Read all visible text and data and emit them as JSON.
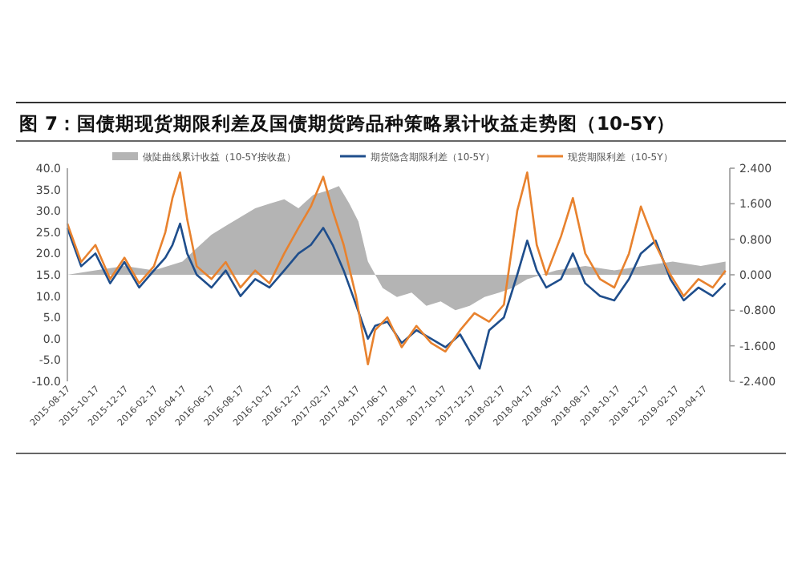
{
  "chart_data": {
    "type": "line",
    "title": "图 7：国债期现货期限利差及国债期货跨品种策略累计收益走势图（10-5Y）",
    "legend": "top",
    "marker": "none",
    "line_style": "solid",
    "grid": false,
    "xlim": [
      "2015-08-17",
      "2019-06-10"
    ],
    "xticks": [
      "2015-08-17",
      "2015-10-17",
      "2015-12-17",
      "2016-02-17",
      "2016-04-17",
      "2016-06-17",
      "2016-08-17",
      "2016-10-17",
      "2016-12-17",
      "2017-02-17",
      "2017-04-17",
      "2017-06-17",
      "2017-08-17",
      "2017-10-17",
      "2017-12-17",
      "2018-02-17",
      "2018-04-17",
      "2018-06-17",
      "2018-08-17",
      "2018-10-17",
      "2018-12-17",
      "2019-02-17",
      "2019-04-17"
    ],
    "ylim": [
      -10,
      40
    ],
    "yticks": [
      {
        "value": 40,
        "label": "40.0"
      },
      {
        "value": 35,
        "label": "35.0"
      },
      {
        "value": 30,
        "label": "30.0"
      },
      {
        "value": 25,
        "label": "25.0"
      },
      {
        "value": 20,
        "label": "20.0"
      },
      {
        "value": 15,
        "label": "15.0"
      },
      {
        "value": 10,
        "label": "10.0"
      },
      {
        "value": 5,
        "label": "5.0"
      },
      {
        "value": 0,
        "label": "0.0"
      },
      {
        "value": -5,
        "label": "-5.0"
      },
      {
        "value": -10,
        "label": "-10.0"
      }
    ],
    "y2lim": [
      -2.4,
      2.4
    ],
    "y2ticks": [
      {
        "value": 2.4,
        "label": "2.400"
      },
      {
        "value": 1.6,
        "label": "1.600"
      },
      {
        "value": 0.8,
        "label": "0.800"
      },
      {
        "value": 0,
        "label": "0.000"
      },
      {
        "value": -0.8,
        "label": "-0.800"
      },
      {
        "value": -1.6,
        "label": "-1.600"
      },
      {
        "value": -2.4,
        "label": "-2.400"
      }
    ],
    "series": [
      {
        "name": "做陡曲线累计收益（10-5Y按收盘）",
        "type": "area",
        "axis": "y2",
        "color": "#b4b4b4",
        "x": [
          "2015-08-17",
          "2015-10-15",
          "2015-12-15",
          "2016-02-15",
          "2016-04-15",
          "2016-05-15",
          "2016-06-15",
          "2016-07-15",
          "2016-08-15",
          "2016-09-15",
          "2016-10-15",
          "2016-11-15",
          "2016-12-15",
          "2017-01-15",
          "2017-02-15",
          "2017-03-10",
          "2017-04-01",
          "2017-04-20",
          "2017-05-10",
          "2017-06-10",
          "2017-07-10",
          "2017-08-10",
          "2017-09-10",
          "2017-10-10",
          "2017-11-10",
          "2017-12-10",
          "2018-01-10",
          "2018-02-10",
          "2018-03-10",
          "2018-04-10",
          "2018-06-10",
          "2018-08-10",
          "2018-10-10",
          "2018-12-10",
          "2019-02-10",
          "2019-04-10",
          "2019-06-01"
        ],
        "values": [
          0,
          0.1,
          0.2,
          0.1,
          0.3,
          0.6,
          0.9,
          1.1,
          1.3,
          1.5,
          1.6,
          1.7,
          1.5,
          1.8,
          1.9,
          2.0,
          1.6,
          1.2,
          0.3,
          -0.3,
          -0.5,
          -0.4,
          -0.7,
          -0.6,
          -0.8,
          -0.7,
          -0.5,
          -0.4,
          -0.3,
          -0.1,
          0.1,
          0.2,
          0.1,
          0.2,
          0.3,
          0.2,
          0.3
        ]
      },
      {
        "name": "期货隐含期限利差（10-5Y）",
        "type": "line",
        "color": "#1f4e8c",
        "x": [
          "2015-08-17",
          "2015-09-15",
          "2015-10-15",
          "2015-11-15",
          "2015-12-15",
          "2016-01-15",
          "2016-02-15",
          "2016-03-10",
          "2016-03-25",
          "2016-04-10",
          "2016-04-25",
          "2016-05-15",
          "2016-06-15",
          "2016-07-15",
          "2016-08-15",
          "2016-09-15",
          "2016-10-15",
          "2016-11-15",
          "2016-12-15",
          "2017-01-10",
          "2017-02-05",
          "2017-02-25",
          "2017-03-20",
          "2017-04-15",
          "2017-05-10",
          "2017-05-25",
          "2017-06-20",
          "2017-07-20",
          "2017-08-20",
          "2017-09-20",
          "2017-10-20",
          "2017-11-20",
          "2017-12-31",
          "2018-01-20",
          "2018-02-20",
          "2018-03-20",
          "2018-04-10",
          "2018-04-30",
          "2018-05-20",
          "2018-06-20",
          "2018-07-15",
          "2018-08-10",
          "2018-09-10",
          "2018-10-10",
          "2018-11-10",
          "2018-12-05",
          "2019-01-05",
          "2019-02-05",
          "2019-03-05",
          "2019-04-05",
          "2019-05-05",
          "2019-06-01"
        ],
        "values": [
          26,
          17,
          20,
          13,
          18,
          12,
          16,
          19,
          22,
          27,
          20,
          15,
          12,
          16,
          10,
          14,
          12,
          16,
          20,
          22,
          26,
          22,
          16,
          8,
          0,
          3,
          4,
          -1,
          2,
          0,
          -2,
          1,
          -7,
          2,
          5,
          15,
          23,
          16,
          12,
          14,
          20,
          13,
          10,
          9,
          14,
          20,
          23,
          14,
          9,
          12,
          10,
          13
        ]
      },
      {
        "name": "现货期限利差（10-5Y）",
        "type": "line",
        "color": "#e8822e",
        "x": [
          "2015-08-17",
          "2015-09-15",
          "2015-10-15",
          "2015-11-15",
          "2015-12-15",
          "2016-01-15",
          "2016-02-15",
          "2016-03-10",
          "2016-03-25",
          "2016-04-10",
          "2016-04-25",
          "2016-05-15",
          "2016-06-15",
          "2016-07-15",
          "2016-08-15",
          "2016-09-15",
          "2016-10-15",
          "2016-11-15",
          "2016-12-15",
          "2017-01-10",
          "2017-02-05",
          "2017-02-25",
          "2017-03-20",
          "2017-04-15",
          "2017-05-10",
          "2017-05-25",
          "2017-06-20",
          "2017-07-20",
          "2017-08-20",
          "2017-09-20",
          "2017-10-20",
          "2017-11-20",
          "2017-12-20",
          "2018-01-20",
          "2018-02-20",
          "2018-03-20",
          "2018-04-10",
          "2018-04-30",
          "2018-05-20",
          "2018-06-20",
          "2018-07-15",
          "2018-08-10",
          "2018-09-10",
          "2018-10-10",
          "2018-11-10",
          "2018-12-05",
          "2019-01-05",
          "2019-02-05",
          "2019-03-05",
          "2019-04-05",
          "2019-05-05",
          "2019-06-01"
        ],
        "values": [
          27,
          18,
          22,
          14,
          19,
          13,
          17,
          25,
          33,
          39,
          28,
          17,
          14,
          18,
          12,
          16,
          13,
          20,
          26,
          31,
          38,
          30,
          22,
          10,
          -6,
          2,
          5,
          -2,
          3,
          -1,
          -3,
          2,
          6,
          4,
          8,
          30,
          39,
          22,
          15,
          24,
          33,
          20,
          14,
          12,
          20,
          31,
          22,
          15,
          10,
          14,
          12,
          16
        ]
      }
    ]
  }
}
